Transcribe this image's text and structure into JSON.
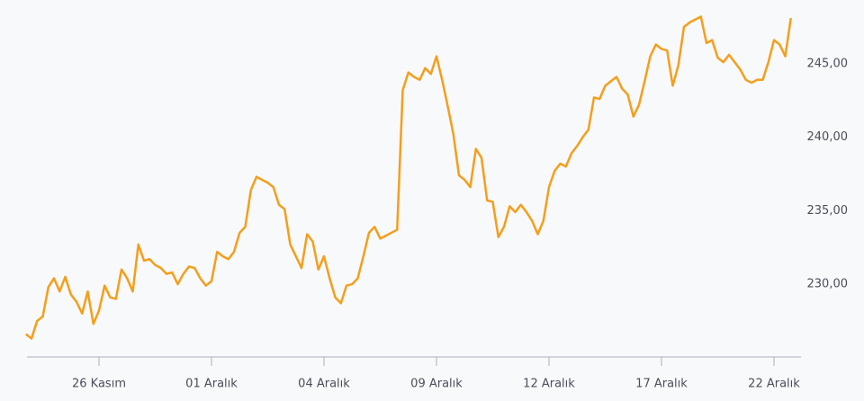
{
  "chart_data": {
    "type": "line",
    "categories": [
      null,
      null,
      null,
      null,
      null,
      null,
      null,
      null,
      null,
      null,
      null,
      null,
      null,
      "26 Kasım",
      null,
      null,
      null,
      null,
      null,
      null,
      null,
      null,
      null,
      null,
      null,
      null,
      null,
      null,
      null,
      null,
      null,
      null,
      null,
      "01 Aralık",
      null,
      null,
      null,
      null,
      null,
      null,
      null,
      null,
      null,
      null,
      null,
      null,
      null,
      null,
      null,
      null,
      null,
      null,
      null,
      "04 Aralık",
      null,
      null,
      null,
      null,
      null,
      null,
      null,
      null,
      null,
      null,
      null,
      null,
      null,
      null,
      null,
      null,
      null,
      null,
      null,
      "09 Aralık",
      null,
      null,
      null,
      null,
      null,
      null,
      null,
      null,
      null,
      null,
      null,
      null,
      null,
      null,
      null,
      null,
      null,
      null,
      null,
      "12 Aralık",
      null,
      null,
      null,
      null,
      null,
      null,
      null,
      null,
      null,
      null,
      null,
      null,
      null,
      null,
      null,
      null,
      null,
      null,
      null,
      "17 Aralık",
      null,
      null,
      null,
      null,
      null,
      null,
      null,
      null,
      null,
      null,
      null,
      null,
      null,
      null,
      null,
      null,
      null,
      null,
      null,
      "22 Aralık",
      null,
      null,
      null
    ],
    "values": [
      226.6,
      226.3,
      227.5,
      227.8,
      229.8,
      230.4,
      229.5,
      230.5,
      229.3,
      228.8,
      228.0,
      229.5,
      227.3,
      228.2,
      229.9,
      229.1,
      229.0,
      231.0,
      230.4,
      229.5,
      232.7,
      231.6,
      231.7,
      231.3,
      231.1,
      230.7,
      230.8,
      230.0,
      230.7,
      231.2,
      231.1,
      230.4,
      229.9,
      230.2,
      232.2,
      231.9,
      231.7,
      232.2,
      233.5,
      233.9,
      236.4,
      237.3,
      237.1,
      236.9,
      236.6,
      235.4,
      235.1,
      232.7,
      231.9,
      231.1,
      233.4,
      232.9,
      231.0,
      231.9,
      230.4,
      229.1,
      228.7,
      229.9,
      230.0,
      230.4,
      231.9,
      233.5,
      233.9,
      233.1,
      233.3,
      233.5,
      233.7,
      243.2,
      244.4,
      244.1,
      243.9,
      244.7,
      244.3,
      245.5,
      243.9,
      242.1,
      240.2,
      237.4,
      237.1,
      236.6,
      239.2,
      238.6,
      235.7,
      235.6,
      233.2,
      233.9,
      235.3,
      234.9,
      235.4,
      234.9,
      234.3,
      233.4,
      234.3,
      236.6,
      237.7,
      238.2,
      238.0,
      238.9,
      239.4,
      240.0,
      240.5,
      242.7,
      242.6,
      243.5,
      243.8,
      244.1,
      243.3,
      242.9,
      241.4,
      242.2,
      243.8,
      245.5,
      246.3,
      246.0,
      245.9,
      243.5,
      244.9,
      247.5,
      247.8,
      248.0,
      248.2,
      246.4,
      246.6,
      245.4,
      245.1,
      245.6,
      245.1,
      244.6,
      243.9,
      243.7,
      243.9,
      243.9,
      245.1,
      246.6,
      246.3,
      245.5,
      248.1
    ],
    "color": "#f59e1b",
    "ylim": [
      225.05,
      249.33
    ],
    "yticks": [
      {
        "value": 230,
        "label": "230,00"
      },
      {
        "value": 235,
        "label": "235,00"
      },
      {
        "value": 240,
        "label": "240,00"
      },
      {
        "value": 245,
        "label": "245,00"
      }
    ],
    "grid": false
  }
}
